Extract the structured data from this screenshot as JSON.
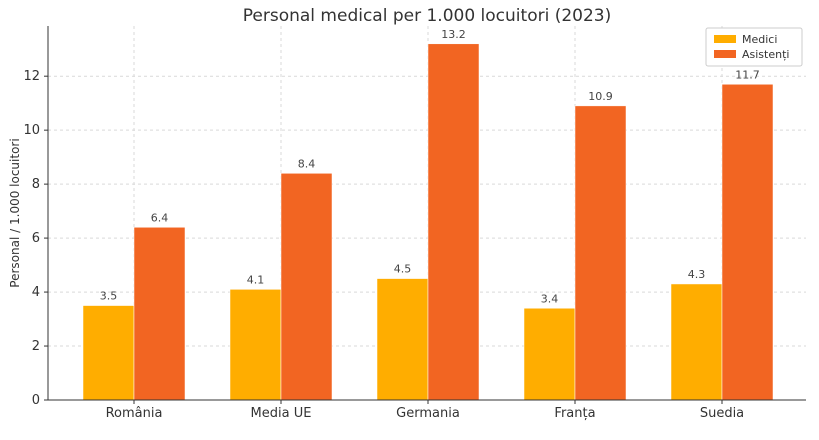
{
  "chart_data": {
    "type": "bar",
    "title": "Personal medical per 1.000 locuitori (2023)",
    "xlabel": "",
    "ylabel": "Personal / 1.000 locuitori",
    "categories": [
      "România",
      "Media UE",
      "Germania",
      "Franța",
      "Suedia"
    ],
    "series": [
      {
        "name": "Medici",
        "color": "#FFAD00",
        "values": [
          3.5,
          4.1,
          4.5,
          3.4,
          4.3
        ],
        "labels": [
          "3.5",
          "4.1",
          "4.5",
          "3.4",
          "4.3"
        ]
      },
      {
        "name": "Asistenți",
        "color": "#F26522",
        "values": [
          6.4,
          8.4,
          13.2,
          10.9,
          11.7
        ],
        "labels": [
          "6.4",
          "8.4",
          "13.2",
          "10.9",
          "11.7"
        ]
      }
    ],
    "ylim": [
      0,
      13.86
    ],
    "yticks": [
      0,
      2,
      4,
      6,
      8,
      10,
      12
    ],
    "ytick_labels": [
      "0",
      "2",
      "4",
      "6",
      "8",
      "10",
      "12"
    ],
    "grid": true,
    "legend_position": "top-right"
  }
}
